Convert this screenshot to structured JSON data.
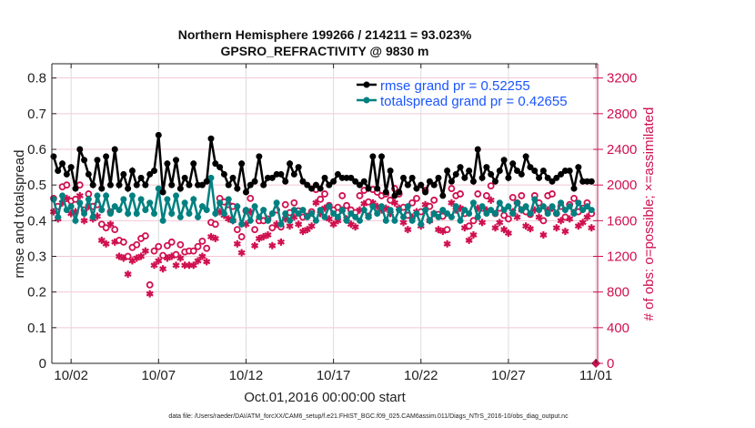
{
  "chart_data": {
    "type": "line",
    "title": [
      "Northern Hemisphere 199266 / 214211 = 93.023%",
      "GPSRO_REFRACTIVITY @ 9830 m"
    ],
    "xlabel": "Oct.01,2016 00:00:00 start",
    "ylabel": "rmse and totalspread",
    "y2label": "# of obs: o=possible; ×=assimilated",
    "footer": "data file: /Users/raeder/DAI/ATM_forcXX/CAM6_setup/f.e21.FHIST_BGC.f09_025.CAM6assim.011/Diags_NTrS_2016-10/obs_diag_output.nc",
    "xlim_days": [
      -0.1,
      31.1
    ],
    "ylim": [
      0,
      0.84
    ],
    "y2lim": [
      0,
      3360
    ],
    "x_ticks": [
      {
        "day": 1,
        "label": "10/02"
      },
      {
        "day": 6,
        "label": "10/07"
      },
      {
        "day": 11,
        "label": "10/12"
      },
      {
        "day": 16,
        "label": "10/17"
      },
      {
        "day": 21,
        "label": "10/22"
      },
      {
        "day": 26,
        "label": "10/27"
      },
      {
        "day": 31,
        "label": "11/01"
      }
    ],
    "y_ticks": [
      "0",
      "0.1",
      "0.2",
      "0.3",
      "0.4",
      "0.5",
      "0.6",
      "0.7",
      "0.8"
    ],
    "y2_ticks": [
      "0",
      "400",
      "800",
      "1200",
      "1600",
      "2000",
      "2400",
      "2800",
      "3200"
    ],
    "grid": true,
    "legend_position": "top-right",
    "time_step_days": 0.25,
    "colors": {
      "rmse": "#000000",
      "spread": "#008080",
      "obs": "#d0104f",
      "legend_text": "#1a55ff"
    },
    "series": [
      {
        "name": "rmse grand pr = 0.52255",
        "axis": "left",
        "values": [
          0.58,
          0.54,
          0.56,
          0.53,
          0.55,
          0.49,
          0.6,
          0.57,
          0.53,
          0.5,
          0.57,
          0.49,
          0.58,
          0.5,
          0.6,
          0.5,
          0.53,
          0.49,
          0.54,
          0.5,
          0.52,
          0.5,
          0.53,
          0.54,
          0.64,
          0.48,
          0.56,
          0.5,
          0.57,
          0.49,
          0.52,
          0.5,
          0.56,
          0.5,
          0.5,
          0.51,
          0.63,
          0.56,
          0.55,
          0.53,
          0.5,
          0.52,
          0.49,
          0.56,
          0.48,
          0.5,
          0.51,
          0.58,
          0.5,
          0.52,
          0.52,
          0.53,
          0.53,
          0.51,
          0.56,
          0.53,
          0.55,
          0.51,
          0.5,
          0.49,
          0.5,
          0.49,
          0.52,
          0.5,
          0.51,
          0.53,
          0.52,
          0.52,
          0.52,
          0.51,
          0.5,
          0.51,
          0.49,
          0.58,
          0.49,
          0.58,
          0.48,
          0.54,
          0.47,
          0.48,
          0.52,
          0.5,
          0.52,
          0.49,
          0.5,
          0.48,
          0.51,
          0.5,
          0.52,
          0.47,
          0.54,
          0.51,
          0.53,
          0.55,
          0.52,
          0.54,
          0.51,
          0.6,
          0.52,
          0.55,
          0.53,
          0.51,
          0.54,
          0.57,
          0.52,
          0.56,
          0.54,
          0.53,
          0.58,
          0.55,
          0.54,
          0.52,
          0.54,
          0.52,
          0.51,
          0.52,
          0.53,
          0.54,
          0.54,
          0.49,
          0.55,
          0.51,
          0.51,
          0.51
        ]
      },
      {
        "name": "totalspread grand pr = 0.42655",
        "axis": "left",
        "values": [
          0.46,
          0.41,
          0.47,
          0.43,
          0.44,
          0.4,
          0.45,
          0.42,
          0.46,
          0.41,
          0.47,
          0.43,
          0.47,
          0.42,
          0.44,
          0.43,
          0.46,
          0.42,
          0.47,
          0.42,
          0.46,
          0.43,
          0.45,
          0.42,
          0.49,
          0.4,
          0.46,
          0.42,
          0.47,
          0.41,
          0.45,
          0.42,
          0.46,
          0.41,
          0.44,
          0.43,
          0.52,
          0.42,
          0.45,
          0.42,
          0.46,
          0.4,
          0.44,
          0.39,
          0.43,
          0.4,
          0.44,
          0.41,
          0.43,
          0.4,
          0.42,
          0.45,
          0.39,
          0.42,
          0.4,
          0.43,
          0.42,
          0.43,
          0.41,
          0.42,
          0.4,
          0.43,
          0.41,
          0.44,
          0.42,
          0.41,
          0.43,
          0.4,
          0.42,
          0.41,
          0.4,
          0.43,
          0.41,
          0.44,
          0.42,
          0.44,
          0.4,
          0.43,
          0.4,
          0.43,
          0.41,
          0.44,
          0.4,
          0.42,
          0.39,
          0.43,
          0.4,
          0.42,
          0.41,
          0.43,
          0.42,
          0.41,
          0.44,
          0.4,
          0.43,
          0.42,
          0.45,
          0.41,
          0.44,
          0.42,
          0.43,
          0.42,
          0.45,
          0.43,
          0.44,
          0.42,
          0.45,
          0.43,
          0.44,
          0.42,
          0.46,
          0.43,
          0.44,
          0.42,
          0.44,
          0.42,
          0.45,
          0.43,
          0.44,
          0.42,
          0.45,
          0.43,
          0.44,
          0.43
        ]
      },
      {
        "name": "obs possible",
        "axis": "right",
        "marker": "o",
        "values": [
          1850,
          1760,
          1980,
          2000,
          1820,
          1840,
          2000,
          1720,
          1900,
          1760,
          1780,
          1560,
          1520,
          1700,
          1500,
          1380,
          1360,
          1200,
          1300,
          1330,
          1400,
          1430,
          880,
          1260,
          1310,
          1210,
          1320,
          1360,
          1220,
          1330,
          1250,
          1260,
          1260,
          1310,
          1370,
          1290,
          1580,
          1560,
          1850,
          1810,
          1780,
          1760,
          1500,
          1420,
          1710,
          1850,
          1500,
          1600,
          1600,
          1620,
          1520,
          1720,
          1530,
          1780,
          1690,
          1800,
          1710,
          1640,
          1650,
          1700,
          1950,
          1840,
          1900,
          1770,
          1720,
          1750,
          1880,
          1770,
          1720,
          1690,
          1880,
          1940,
          1810,
          1950,
          1920,
          1880,
          1900,
          1830,
          1960,
          1900,
          1750,
          1660,
          1800,
          1850,
          1700,
          1940,
          1760,
          1830,
          1670,
          1650,
          1500,
          1960,
          1880,
          1900,
          1680,
          1540,
          1600,
          1900,
          1740,
          1880,
          1990,
          1680,
          1740,
          1660,
          1620,
          1860,
          1800,
          1880,
          1700,
          1670,
          1880,
          1800,
          1600,
          1880,
          1900,
          1680,
          1760,
          1640,
          1780,
          1850,
          1700,
          1740,
          1800,
          1680
        ]
      },
      {
        "name": "obs assimilated",
        "axis": "right",
        "marker": "*",
        "values": [
          1700,
          1620,
          1800,
          1850,
          1680,
          1700,
          1880,
          1600,
          1760,
          1620,
          1650,
          1380,
          1340,
          1560,
          1360,
          1200,
          1180,
          1000,
          1150,
          1180,
          1200,
          1260,
          780,
          1100,
          1150,
          1060,
          1180,
          1200,
          1100,
          1180,
          1100,
          1100,
          1100,
          1150,
          1200,
          1140,
          1420,
          1400,
          1700,
          1660,
          1620,
          1600,
          1340,
          1240,
          1560,
          1700,
          1320,
          1400,
          1420,
          1440,
          1320,
          1560,
          1360,
          1620,
          1540,
          1640,
          1560,
          1480,
          1500,
          1540,
          1800,
          1680,
          1740,
          1620,
          1560,
          1600,
          1720,
          1620,
          1560,
          1530,
          1720,
          1790,
          1650,
          1800,
          1760,
          1720,
          1740,
          1680,
          1800,
          1740,
          1580,
          1500,
          1640,
          1700,
          1540,
          1780,
          1600,
          1680,
          1500,
          1480,
          1340,
          1800,
          1720,
          1740,
          1520,
          1380,
          1440,
          1740,
          1580,
          1720,
          1830,
          1520,
          1580,
          1500,
          1460,
          1700,
          1640,
          1720,
          1540,
          1510,
          1720,
          1640,
          1440,
          1720,
          1740,
          1520,
          1600,
          1480,
          1620,
          1690,
          1540,
          1580,
          1640,
          1520
        ]
      }
    ],
    "extra_marker": {
      "day": 31,
      "value": 0,
      "axis": "right",
      "marker": "diamond"
    }
  }
}
